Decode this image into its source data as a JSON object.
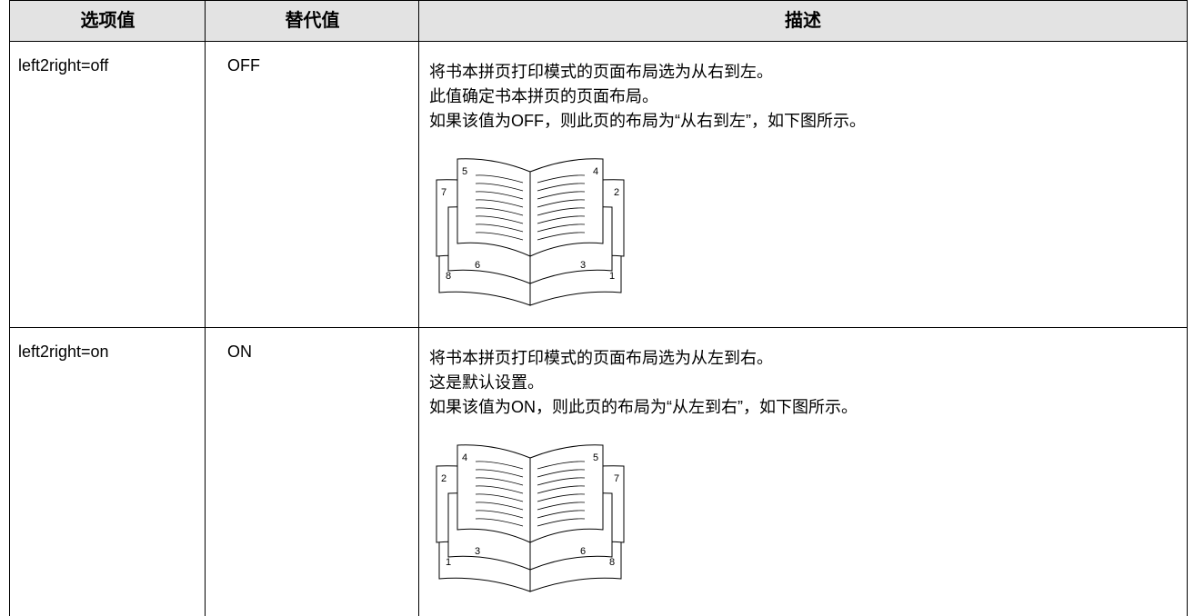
{
  "table": {
    "header": [
      "选项值",
      "替代值",
      "描述"
    ],
    "rows": [
      {
        "option": "left2right=off",
        "value": "OFF",
        "description": [
          "将书本拼页打印模式的页面布局选为从右到左。",
          "此值确定书本拼页的页面布局。",
          "如果该值为OFF，则此页的布局为“从右到左”，如下图所示。"
        ],
        "diagram": {
          "pages": [
            "7",
            "5",
            "4",
            "2",
            "6",
            "3",
            "8",
            "1"
          ]
        }
      },
      {
        "option": "left2right=on",
        "value": "ON",
        "description": [
          "将书本拼页打印模式的页面布局选为从左到右。",
          "这是默认设置。",
          "如果该值为ON，则此页的布局为“从左到右”，如下图所示。"
        ],
        "diagram": {
          "pages": [
            "2",
            "4",
            "5",
            "7",
            "3",
            "6",
            "1",
            "8"
          ]
        }
      }
    ]
  }
}
